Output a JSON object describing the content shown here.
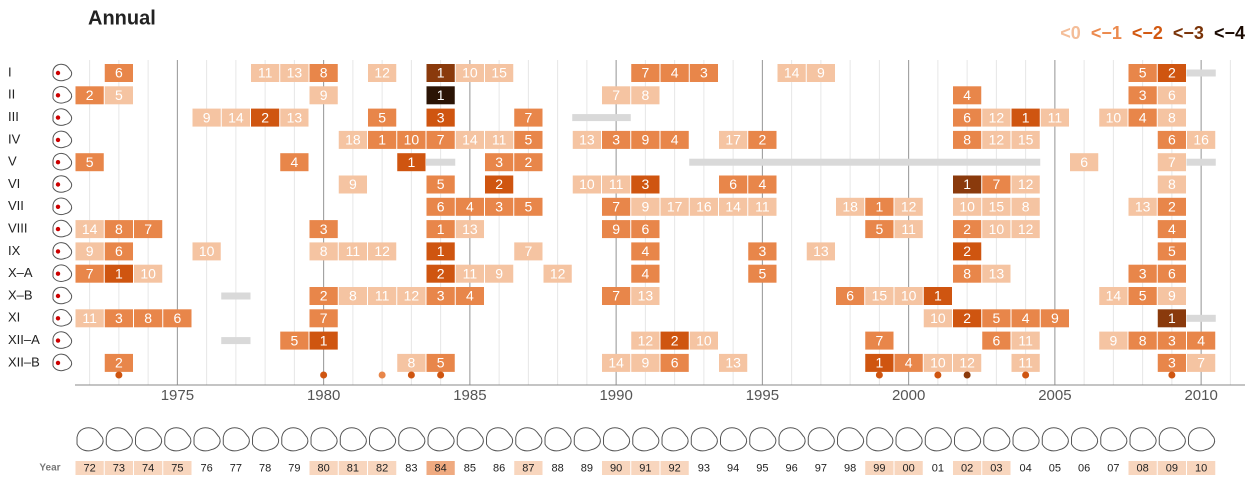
{
  "chart_data": {
    "type": "drought-grid",
    "title": "Annual",
    "xlim": [
      1971.5,
      2011.5
    ],
    "xticks": [
      1975,
      1980,
      1985,
      1990,
      1995,
      2000,
      2005,
      2010
    ],
    "levels": [
      {
        "label": "<0",
        "color": "#f5c4a2",
        "text_color": "#f4bd98"
      },
      {
        "label": "<−1",
        "color": "#e8864a",
        "text_color": "#ec8a4e"
      },
      {
        "label": "<−2",
        "color": "#cf5510",
        "text_color": "#d25810"
      },
      {
        "label": "<−3",
        "color": "#8a3a0c",
        "text_color": "#7a3308"
      },
      {
        "label": "<−4",
        "color": "#2b1405",
        "text_color": "#1a0a02"
      }
    ],
    "missing_color": "#d9d9d9",
    "rows": [
      {
        "name": "I",
        "cells": [
          [
            1973,
            6,
            1
          ],
          [
            1978,
            11,
            0
          ],
          [
            1979,
            13,
            0
          ],
          [
            1980,
            8,
            1
          ],
          [
            1982,
            12,
            0
          ],
          [
            1984,
            1,
            3
          ],
          [
            1985,
            10,
            0
          ],
          [
            1986,
            15,
            0
          ],
          [
            1991,
            7,
            1
          ],
          [
            1992,
            4,
            1
          ],
          [
            1993,
            3,
            1
          ],
          [
            1996,
            14,
            0
          ],
          [
            1997,
            9,
            0
          ],
          [
            2008,
            5,
            1
          ],
          [
            2009,
            2,
            2
          ]
        ],
        "missing": [
          [
            2010,
            2010
          ]
        ]
      },
      {
        "name": "II",
        "cells": [
          [
            1972,
            2,
            1
          ],
          [
            1973,
            5,
            0
          ],
          [
            1980,
            9,
            0
          ],
          [
            1984,
            1,
            4
          ],
          [
            1990,
            7,
            0
          ],
          [
            1991,
            8,
            0
          ],
          [
            2002,
            4,
            1
          ],
          [
            2008,
            3,
            1
          ],
          [
            2009,
            6,
            0
          ]
        ],
        "missing": []
      },
      {
        "name": "III",
        "cells": [
          [
            1976,
            9,
            0
          ],
          [
            1977,
            14,
            0
          ],
          [
            1978,
            2,
            2
          ],
          [
            1979,
            13,
            0
          ],
          [
            1982,
            5,
            1
          ],
          [
            1984,
            3,
            2
          ],
          [
            1987,
            7,
            1
          ],
          [
            2002,
            6,
            1
          ],
          [
            2003,
            12,
            0
          ],
          [
            2004,
            1,
            2
          ],
          [
            2005,
            11,
            0
          ],
          [
            2007,
            10,
            0
          ],
          [
            2008,
            4,
            1
          ],
          [
            2009,
            8,
            0
          ]
        ],
        "missing": [
          [
            1989,
            1990
          ]
        ]
      },
      {
        "name": "IV",
        "cells": [
          [
            1981,
            18,
            0
          ],
          [
            1982,
            1,
            1
          ],
          [
            1983,
            10,
            1
          ],
          [
            1984,
            7,
            1
          ],
          [
            1985,
            14,
            0
          ],
          [
            1986,
            11,
            0
          ],
          [
            1987,
            5,
            1
          ],
          [
            1989,
            13,
            0
          ],
          [
            1990,
            3,
            1
          ],
          [
            1991,
            9,
            1
          ],
          [
            1992,
            4,
            1
          ],
          [
            1994,
            17,
            0
          ],
          [
            1995,
            2,
            1
          ],
          [
            2002,
            8,
            1
          ],
          [
            2003,
            12,
            0
          ],
          [
            2004,
            15,
            0
          ],
          [
            2009,
            6,
            1
          ],
          [
            2010,
            16,
            0
          ]
        ],
        "missing": []
      },
      {
        "name": "V",
        "cells": [
          [
            1972,
            5,
            1
          ],
          [
            1979,
            4,
            1
          ],
          [
            1983,
            1,
            2
          ],
          [
            1986,
            3,
            1
          ],
          [
            1987,
            2,
            1
          ],
          [
            2006,
            6,
            0
          ],
          [
            2009,
            7,
            0
          ]
        ],
        "missing": [
          [
            1984,
            1984
          ],
          [
            1993,
            2004
          ],
          [
            2010,
            2010
          ]
        ]
      },
      {
        "name": "VI",
        "cells": [
          [
            1981,
            9,
            0
          ],
          [
            1984,
            5,
            1
          ],
          [
            1986,
            2,
            2
          ],
          [
            1989,
            10,
            0
          ],
          [
            1990,
            11,
            0
          ],
          [
            1991,
            3,
            2
          ],
          [
            1994,
            6,
            1
          ],
          [
            1995,
            4,
            1
          ],
          [
            2002,
            1,
            3
          ],
          [
            2003,
            7,
            1
          ],
          [
            2004,
            12,
            0
          ],
          [
            2009,
            8,
            0
          ]
        ],
        "missing": []
      },
      {
        "name": "VII",
        "cells": [
          [
            1984,
            6,
            1
          ],
          [
            1985,
            4,
            1
          ],
          [
            1986,
            3,
            1
          ],
          [
            1987,
            5,
            1
          ],
          [
            1990,
            7,
            1
          ],
          [
            1991,
            9,
            0
          ],
          [
            1992,
            17,
            0
          ],
          [
            1993,
            16,
            0
          ],
          [
            1994,
            14,
            0
          ],
          [
            1995,
            11,
            0
          ],
          [
            1998,
            18,
            0
          ],
          [
            1999,
            1,
            1
          ],
          [
            2000,
            12,
            0
          ],
          [
            2002,
            10,
            0
          ],
          [
            2003,
            15,
            0
          ],
          [
            2004,
            8,
            0
          ],
          [
            2008,
            13,
            0
          ],
          [
            2009,
            2,
            1
          ]
        ],
        "missing": []
      },
      {
        "name": "VIII",
        "cells": [
          [
            1972,
            14,
            0
          ],
          [
            1973,
            8,
            1
          ],
          [
            1974,
            7,
            1
          ],
          [
            1980,
            3,
            1
          ],
          [
            1984,
            1,
            1
          ],
          [
            1985,
            13,
            0
          ],
          [
            1990,
            9,
            1
          ],
          [
            1991,
            6,
            1
          ],
          [
            1999,
            5,
            1
          ],
          [
            2000,
            11,
            0
          ],
          [
            2002,
            2,
            1
          ],
          [
            2003,
            10,
            0
          ],
          [
            2004,
            12,
            0
          ],
          [
            2009,
            4,
            1
          ]
        ],
        "missing": []
      },
      {
        "name": "IX",
        "cells": [
          [
            1972,
            9,
            0
          ],
          [
            1973,
            6,
            1
          ],
          [
            1976,
            10,
            0
          ],
          [
            1980,
            8,
            0
          ],
          [
            1981,
            11,
            0
          ],
          [
            1982,
            12,
            0
          ],
          [
            1984,
            1,
            2
          ],
          [
            1987,
            7,
            0
          ],
          [
            1991,
            4,
            1
          ],
          [
            1995,
            3,
            1
          ],
          [
            1997,
            13,
            0
          ],
          [
            2002,
            2,
            2
          ],
          [
            2009,
            5,
            1
          ]
        ],
        "missing": []
      },
      {
        "name": "X–A",
        "cells": [
          [
            1972,
            7,
            1
          ],
          [
            1973,
            1,
            2
          ],
          [
            1974,
            10,
            0
          ],
          [
            1984,
            2,
            2
          ],
          [
            1985,
            11,
            0
          ],
          [
            1986,
            9,
            0
          ],
          [
            1988,
            12,
            0
          ],
          [
            1991,
            4,
            1
          ],
          [
            1995,
            5,
            1
          ],
          [
            2002,
            8,
            1
          ],
          [
            2003,
            13,
            0
          ],
          [
            2008,
            3,
            1
          ],
          [
            2009,
            6,
            1
          ]
        ],
        "missing": []
      },
      {
        "name": "X–B",
        "cells": [
          [
            1980,
            2,
            1
          ],
          [
            1981,
            8,
            0
          ],
          [
            1982,
            11,
            0
          ],
          [
            1983,
            12,
            0
          ],
          [
            1984,
            3,
            1
          ],
          [
            1985,
            4,
            1
          ],
          [
            1990,
            7,
            1
          ],
          [
            1991,
            13,
            0
          ],
          [
            1998,
            6,
            1
          ],
          [
            1999,
            15,
            0
          ],
          [
            2000,
            10,
            0
          ],
          [
            2001,
            1,
            2
          ],
          [
            2007,
            14,
            0
          ],
          [
            2008,
            5,
            1
          ],
          [
            2009,
            9,
            0
          ]
        ],
        "missing": [
          [
            1977,
            1977
          ]
        ]
      },
      {
        "name": "XI",
        "cells": [
          [
            1972,
            11,
            0
          ],
          [
            1973,
            3,
            1
          ],
          [
            1974,
            8,
            1
          ],
          [
            1975,
            6,
            1
          ],
          [
            1980,
            7,
            1
          ],
          [
            2001,
            10,
            0
          ],
          [
            2002,
            2,
            2
          ],
          [
            2003,
            5,
            1
          ],
          [
            2004,
            4,
            1
          ],
          [
            2005,
            9,
            1
          ],
          [
            2009,
            1,
            3
          ]
        ],
        "missing": [
          [
            2010,
            2010
          ]
        ]
      },
      {
        "name": "XII–A",
        "cells": [
          [
            1979,
            5,
            1
          ],
          [
            1980,
            1,
            2
          ],
          [
            1991,
            12,
            0
          ],
          [
            1992,
            2,
            2
          ],
          [
            1993,
            10,
            0
          ],
          [
            1999,
            7,
            1
          ],
          [
            2003,
            6,
            1
          ],
          [
            2004,
            11,
            0
          ],
          [
            2007,
            9,
            0
          ],
          [
            2008,
            8,
            1
          ],
          [
            2009,
            3,
            1
          ],
          [
            2010,
            4,
            1
          ]
        ],
        "missing": [
          [
            1977,
            1977
          ]
        ]
      },
      {
        "name": "XII–B",
        "cells": [
          [
            1973,
            2,
            1
          ],
          [
            1983,
            8,
            0
          ],
          [
            1984,
            5,
            1
          ],
          [
            1990,
            14,
            0
          ],
          [
            1991,
            9,
            0
          ],
          [
            1992,
            6,
            1
          ],
          [
            1994,
            13,
            0
          ],
          [
            1999,
            1,
            2
          ],
          [
            2000,
            4,
            1
          ],
          [
            2001,
            10,
            0
          ],
          [
            2002,
            12,
            0
          ],
          [
            2004,
            11,
            0
          ],
          [
            2009,
            3,
            1
          ],
          [
            2010,
            7,
            0
          ]
        ],
        "missing": []
      }
    ],
    "dots": [
      [
        1973,
        2
      ],
      [
        1980,
        2
      ],
      [
        1982,
        1
      ],
      [
        1983,
        2
      ],
      [
        1984,
        2
      ],
      [
        1999,
        2
      ],
      [
        2001,
        2
      ],
      [
        2002,
        3
      ],
      [
        2004,
        2
      ],
      [
        2009,
        2
      ]
    ],
    "strip": {
      "label": "Year",
      "items": [
        [
          1972,
          "72",
          0
        ],
        [
          1973,
          "73",
          0
        ],
        [
          1974,
          "74",
          0
        ],
        [
          1975,
          "75",
          0
        ],
        [
          1976,
          "76",
          null
        ],
        [
          1977,
          "77",
          null
        ],
        [
          1978,
          "78",
          null
        ],
        [
          1979,
          "79",
          null
        ],
        [
          1980,
          "80",
          0
        ],
        [
          1981,
          "81",
          0
        ],
        [
          1982,
          "82",
          0
        ],
        [
          1983,
          "83",
          null
        ],
        [
          1984,
          "84",
          1
        ],
        [
          1985,
          "85",
          null
        ],
        [
          1986,
          "86",
          null
        ],
        [
          1987,
          "87",
          0
        ],
        [
          1988,
          "88",
          null
        ],
        [
          1989,
          "89",
          null
        ],
        [
          1990,
          "90",
          0
        ],
        [
          1991,
          "91",
          0
        ],
        [
          1992,
          "92",
          0
        ],
        [
          1993,
          "93",
          null
        ],
        [
          1994,
          "94",
          null
        ],
        [
          1995,
          "95",
          null
        ],
        [
          1996,
          "96",
          null
        ],
        [
          1997,
          "97",
          null
        ],
        [
          1998,
          "98",
          null
        ],
        [
          1999,
          "99",
          0
        ],
        [
          2000,
          "00",
          0
        ],
        [
          2001,
          "01",
          null
        ],
        [
          2002,
          "02",
          0
        ],
        [
          2003,
          "03",
          0
        ],
        [
          2004,
          "04",
          null
        ],
        [
          2005,
          "05",
          null
        ],
        [
          2006,
          "06",
          null
        ],
        [
          2007,
          "07",
          null
        ],
        [
          2008,
          "08",
          0
        ],
        [
          2009,
          "09",
          0
        ],
        [
          2010,
          "10",
          0
        ]
      ]
    }
  }
}
